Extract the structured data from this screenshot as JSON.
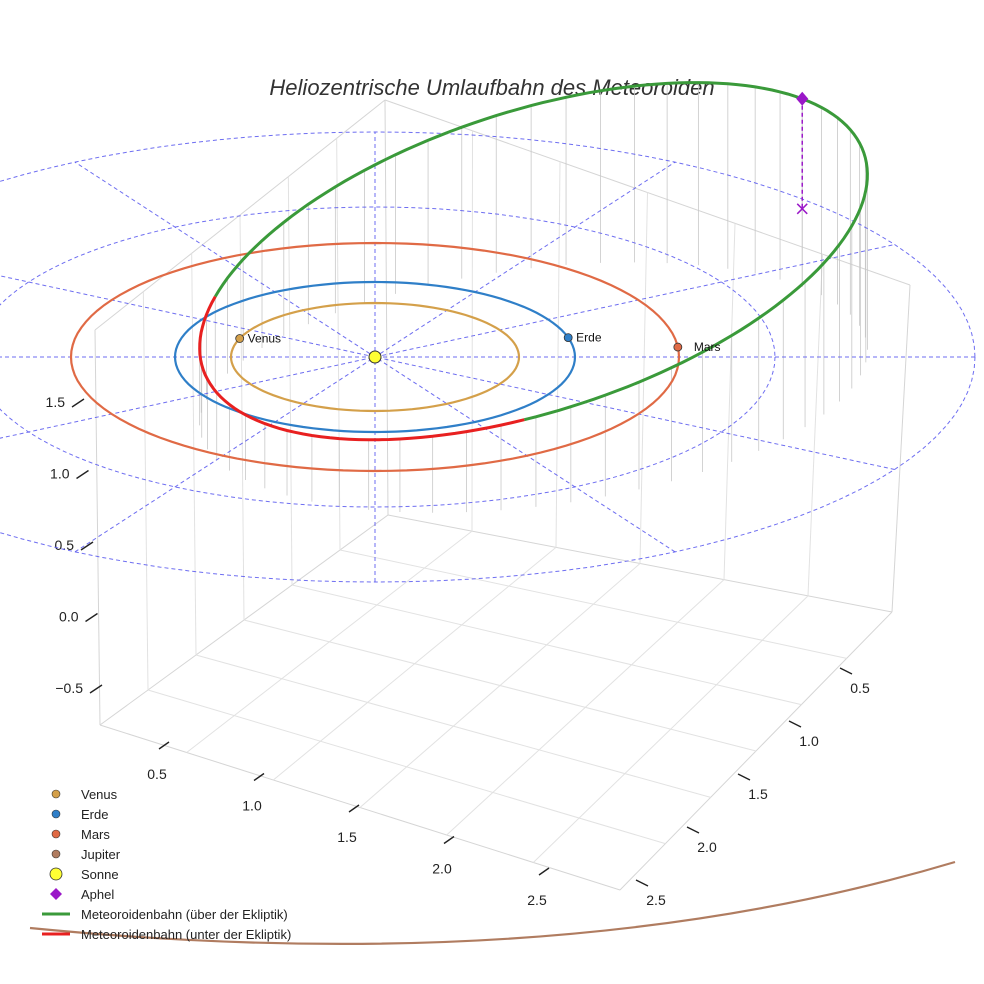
{
  "chart_data": {
    "type": "scatter3d",
    "title": "Heliozentrische Umlaufbahn des Meteoroiden",
    "colors": {
      "venus": "#d4a04a",
      "erde": "#2f7fc8",
      "mars": "#e06a45",
      "jupiter": "#b07c60",
      "meteor_above": "#3a9a3a",
      "meteor_below": "#e82020",
      "aphel": "#9a18c8",
      "grid_lines": "#5555ee",
      "sun": "#ffff33"
    },
    "axes": {
      "x": {
        "range": [
          0.0,
          2.8
        ],
        "ticks": [
          0.5,
          1.0,
          1.5,
          2.0,
          2.5
        ],
        "tick_labels": [
          "0.5",
          "1.0",
          "1.5",
          "2.0",
          "2.5"
        ]
      },
      "y": {
        "range": [
          0.0,
          2.8
        ],
        "ticks": [
          0.5,
          1.0,
          1.5,
          2.0,
          2.5
        ],
        "tick_labels": [
          "0.5",
          "1.0",
          "1.5",
          "2.0",
          "2.5"
        ]
      },
      "z": {
        "range": [
          -0.8,
          1.9
        ],
        "ticks": [
          -0.5,
          0.0,
          0.5,
          1.0,
          1.5
        ],
        "tick_labels": [
          "−0.5",
          "0.0",
          "0.5",
          "1.0",
          "1.5"
        ]
      }
    },
    "orbits": [
      {
        "name": "Venus",
        "radius_au": 0.72
      },
      {
        "name": "Erde",
        "radius_au": 1.0
      },
      {
        "name": "Mars",
        "radius_au": 1.52
      }
    ],
    "ecliptic_grid_circles_au": [
      1.0,
      2.0,
      3.0
    ],
    "ecliptic_radial_lines_deg": [
      0,
      30,
      60,
      90,
      120,
      150
    ],
    "meteoroid_orbit": {
      "semi_major_axis_au": 1.9,
      "eccentricity": 0.59,
      "inclination_deg": 24,
      "aphelion_angle_deg": -45
    },
    "points": [
      {
        "name": "Venus",
        "label": "Venus",
        "angle_deg": 200,
        "radius_au": 0.72
      },
      {
        "name": "Erde",
        "label": "Erde",
        "angle_deg": -15,
        "radius_au": 1.0
      },
      {
        "name": "Mars",
        "label": "Mars",
        "angle_deg": -5,
        "radius_au": 1.52
      }
    ],
    "aphel": {
      "label": "Aphel",
      "symbol": "diamond"
    },
    "legend": [
      {
        "label": "Venus",
        "symbol": "dot",
        "color": "#d4a04a"
      },
      {
        "label": "Erde",
        "symbol": "dot",
        "color": "#2f7fc8"
      },
      {
        "label": "Mars",
        "symbol": "dot",
        "color": "#e06a45"
      },
      {
        "label": "Jupiter",
        "symbol": "dot",
        "color": "#b07c60"
      },
      {
        "label": "Sonne",
        "symbol": "sun",
        "color": "#ffff33"
      },
      {
        "label": "Aphel",
        "symbol": "diamond",
        "color": "#9a18c8"
      },
      {
        "label": "Meteoroidenbahn (über der Ekliptik)",
        "symbol": "line",
        "color": "#3a9a3a"
      },
      {
        "label": "Meteoroidenbahn (unter der Ekliptik)",
        "symbol": "line",
        "color": "#e82020"
      }
    ]
  }
}
